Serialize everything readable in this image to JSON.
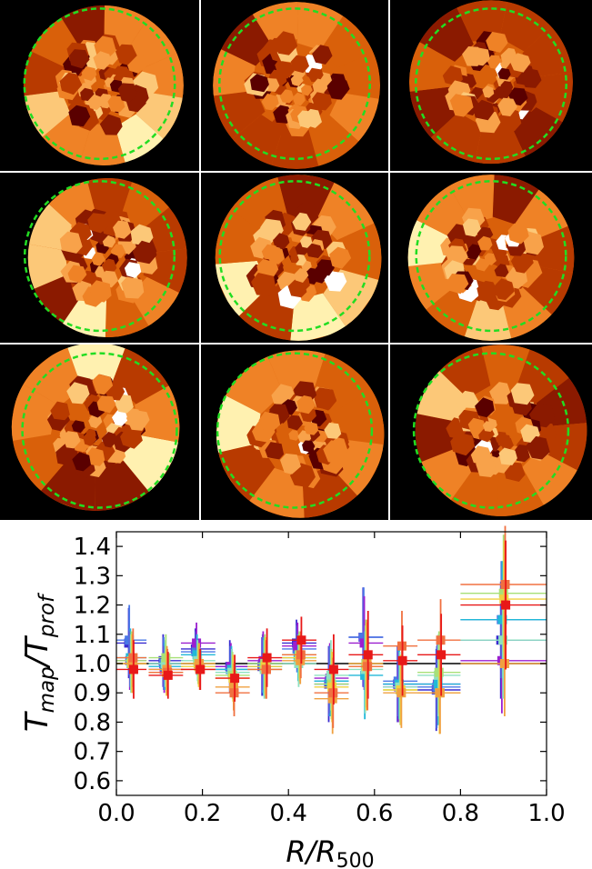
{
  "panels": {
    "count": 9,
    "colormap": [
      "#000000",
      "#5a0000",
      "#8b1a00",
      "#b83a00",
      "#d9600a",
      "#ef8226",
      "#f8a24a",
      "#fcc878",
      "#fff1b0",
      "#ffffff"
    ],
    "circle_color": "#22dd22",
    "seeds": [
      11,
      23,
      37,
      41,
      53,
      67,
      71,
      83,
      97
    ]
  },
  "chart_data": {
    "type": "scatter",
    "xlabel": "R/R",
    "xlabel_sub": "500",
    "ylabel": "T",
    "ylabel_sub1": "map",
    "ylabel_sep": "/T",
    "ylabel_sub2": "prof",
    "xlim": [
      0.0,
      1.0
    ],
    "ylim": [
      0.55,
      1.45
    ],
    "xticks": [
      0.0,
      0.2,
      0.4,
      0.6,
      0.8,
      1.0
    ],
    "xtick_labels": [
      "0.0",
      "0.2",
      "0.4",
      "0.6",
      "0.8",
      "1.0"
    ],
    "yticks": [
      0.6,
      0.7,
      0.8,
      0.9,
      1.0,
      1.1,
      1.2,
      1.3,
      1.4
    ],
    "ytick_labels": [
      "0.6",
      "0.7",
      "0.8",
      "0.9",
      "1.0",
      "1.1",
      "1.2",
      "1.3",
      "1.4"
    ],
    "reference_lines": [
      1.0
    ],
    "bins": [
      {
        "x": 0.035,
        "xerr": 0.035
      },
      {
        "x": 0.115,
        "xerr": 0.04
      },
      {
        "x": 0.19,
        "xerr": 0.04
      },
      {
        "x": 0.27,
        "xerr": 0.04
      },
      {
        "x": 0.345,
        "xerr": 0.04
      },
      {
        "x": 0.425,
        "xerr": 0.04
      },
      {
        "x": 0.5,
        "xerr": 0.04
      },
      {
        "x": 0.58,
        "xerr": 0.04
      },
      {
        "x": 0.66,
        "xerr": 0.04
      },
      {
        "x": 0.75,
        "xerr": 0.05
      },
      {
        "x": 0.9,
        "xerr": 0.1
      }
    ],
    "series": [
      {
        "color": "#3a2bd0",
        "values": [
          1.07,
          1.01,
          1.05,
          0.99,
          0.99,
          1.07,
          0.93,
          1.09,
          0.93,
          0.91,
          1.08
        ],
        "errors": [
          0.12,
          0.09,
          0.07,
          0.09,
          0.1,
          0.08,
          0.13,
          0.17,
          0.13,
          0.14,
          0.2
        ]
      },
      {
        "color": "#4a78e6",
        "values": [
          1.08,
          1.0,
          1.04,
          0.98,
          1.0,
          1.05,
          0.94,
          1.09,
          0.94,
          0.92,
          1.15
        ],
        "errors": [
          0.12,
          0.09,
          0.07,
          0.08,
          0.1,
          0.08,
          0.12,
          0.17,
          0.12,
          0.14,
          0.2
        ]
      },
      {
        "color": "#9b1fd0",
        "values": [
          1.01,
          0.98,
          1.07,
          0.99,
          1.01,
          1.06,
          0.95,
          1.07,
          0.92,
          0.93,
          1.01
        ],
        "errors": [
          0.1,
          0.08,
          0.07,
          0.08,
          0.1,
          0.08,
          0.12,
          0.16,
          0.12,
          0.14,
          0.18
        ]
      },
      {
        "color": "#22b8d8",
        "values": [
          1.02,
          0.99,
          1.03,
          0.98,
          0.99,
          1.02,
          0.94,
          0.96,
          0.93,
          0.93,
          1.15
        ],
        "errors": [
          0.1,
          0.08,
          0.07,
          0.08,
          0.1,
          0.08,
          0.12,
          0.15,
          0.12,
          0.14,
          0.2
        ]
      },
      {
        "color": "#8fe0c0",
        "values": [
          1.0,
          1.0,
          1.01,
          0.97,
          0.98,
          1.0,
          0.96,
          0.98,
          0.92,
          0.96,
          1.08
        ],
        "errors": [
          0.1,
          0.08,
          0.07,
          0.08,
          0.1,
          0.08,
          0.12,
          0.15,
          0.12,
          0.14,
          0.2
        ]
      },
      {
        "color": "#a8e078",
        "values": [
          1.01,
          1.02,
          1.0,
          0.96,
          1.0,
          1.03,
          0.93,
          1.0,
          0.91,
          0.97,
          1.24
        ],
        "errors": [
          0.1,
          0.08,
          0.07,
          0.08,
          0.1,
          0.08,
          0.12,
          0.15,
          0.12,
          0.14,
          0.2
        ]
      },
      {
        "color": "#f0d040",
        "values": [
          1.0,
          0.97,
          0.99,
          0.95,
          0.99,
          1.02,
          0.92,
          0.99,
          0.91,
          0.9,
          1.22
        ],
        "errors": [
          0.1,
          0.08,
          0.07,
          0.08,
          0.1,
          0.08,
          0.12,
          0.15,
          0.12,
          0.14,
          0.2
        ]
      },
      {
        "color": "#f0a040",
        "values": [
          1.0,
          0.98,
          1.0,
          0.92,
          0.98,
          1.01,
          0.88,
          1.0,
          0.9,
          0.9,
          1.0
        ],
        "errors": [
          0.1,
          0.08,
          0.07,
          0.08,
          0.1,
          0.08,
          0.12,
          0.15,
          0.12,
          0.14,
          0.18
        ]
      },
      {
        "color": "#f07040",
        "values": [
          1.02,
          0.97,
          0.98,
          0.9,
          0.98,
          1.03,
          0.9,
          0.99,
          1.06,
          1.08,
          1.27
        ],
        "errors": [
          0.1,
          0.08,
          0.07,
          0.08,
          0.1,
          0.08,
          0.12,
          0.15,
          0.12,
          0.14,
          0.2
        ]
      },
      {
        "color": "#e81818",
        "values": [
          0.98,
          0.96,
          0.98,
          0.95,
          1.02,
          1.08,
          0.98,
          1.03,
          1.01,
          1.03,
          1.2
        ],
        "errors": [
          0.1,
          0.08,
          0.07,
          0.08,
          0.1,
          0.08,
          0.12,
          0.15,
          0.12,
          0.14,
          0.22
        ]
      }
    ]
  }
}
